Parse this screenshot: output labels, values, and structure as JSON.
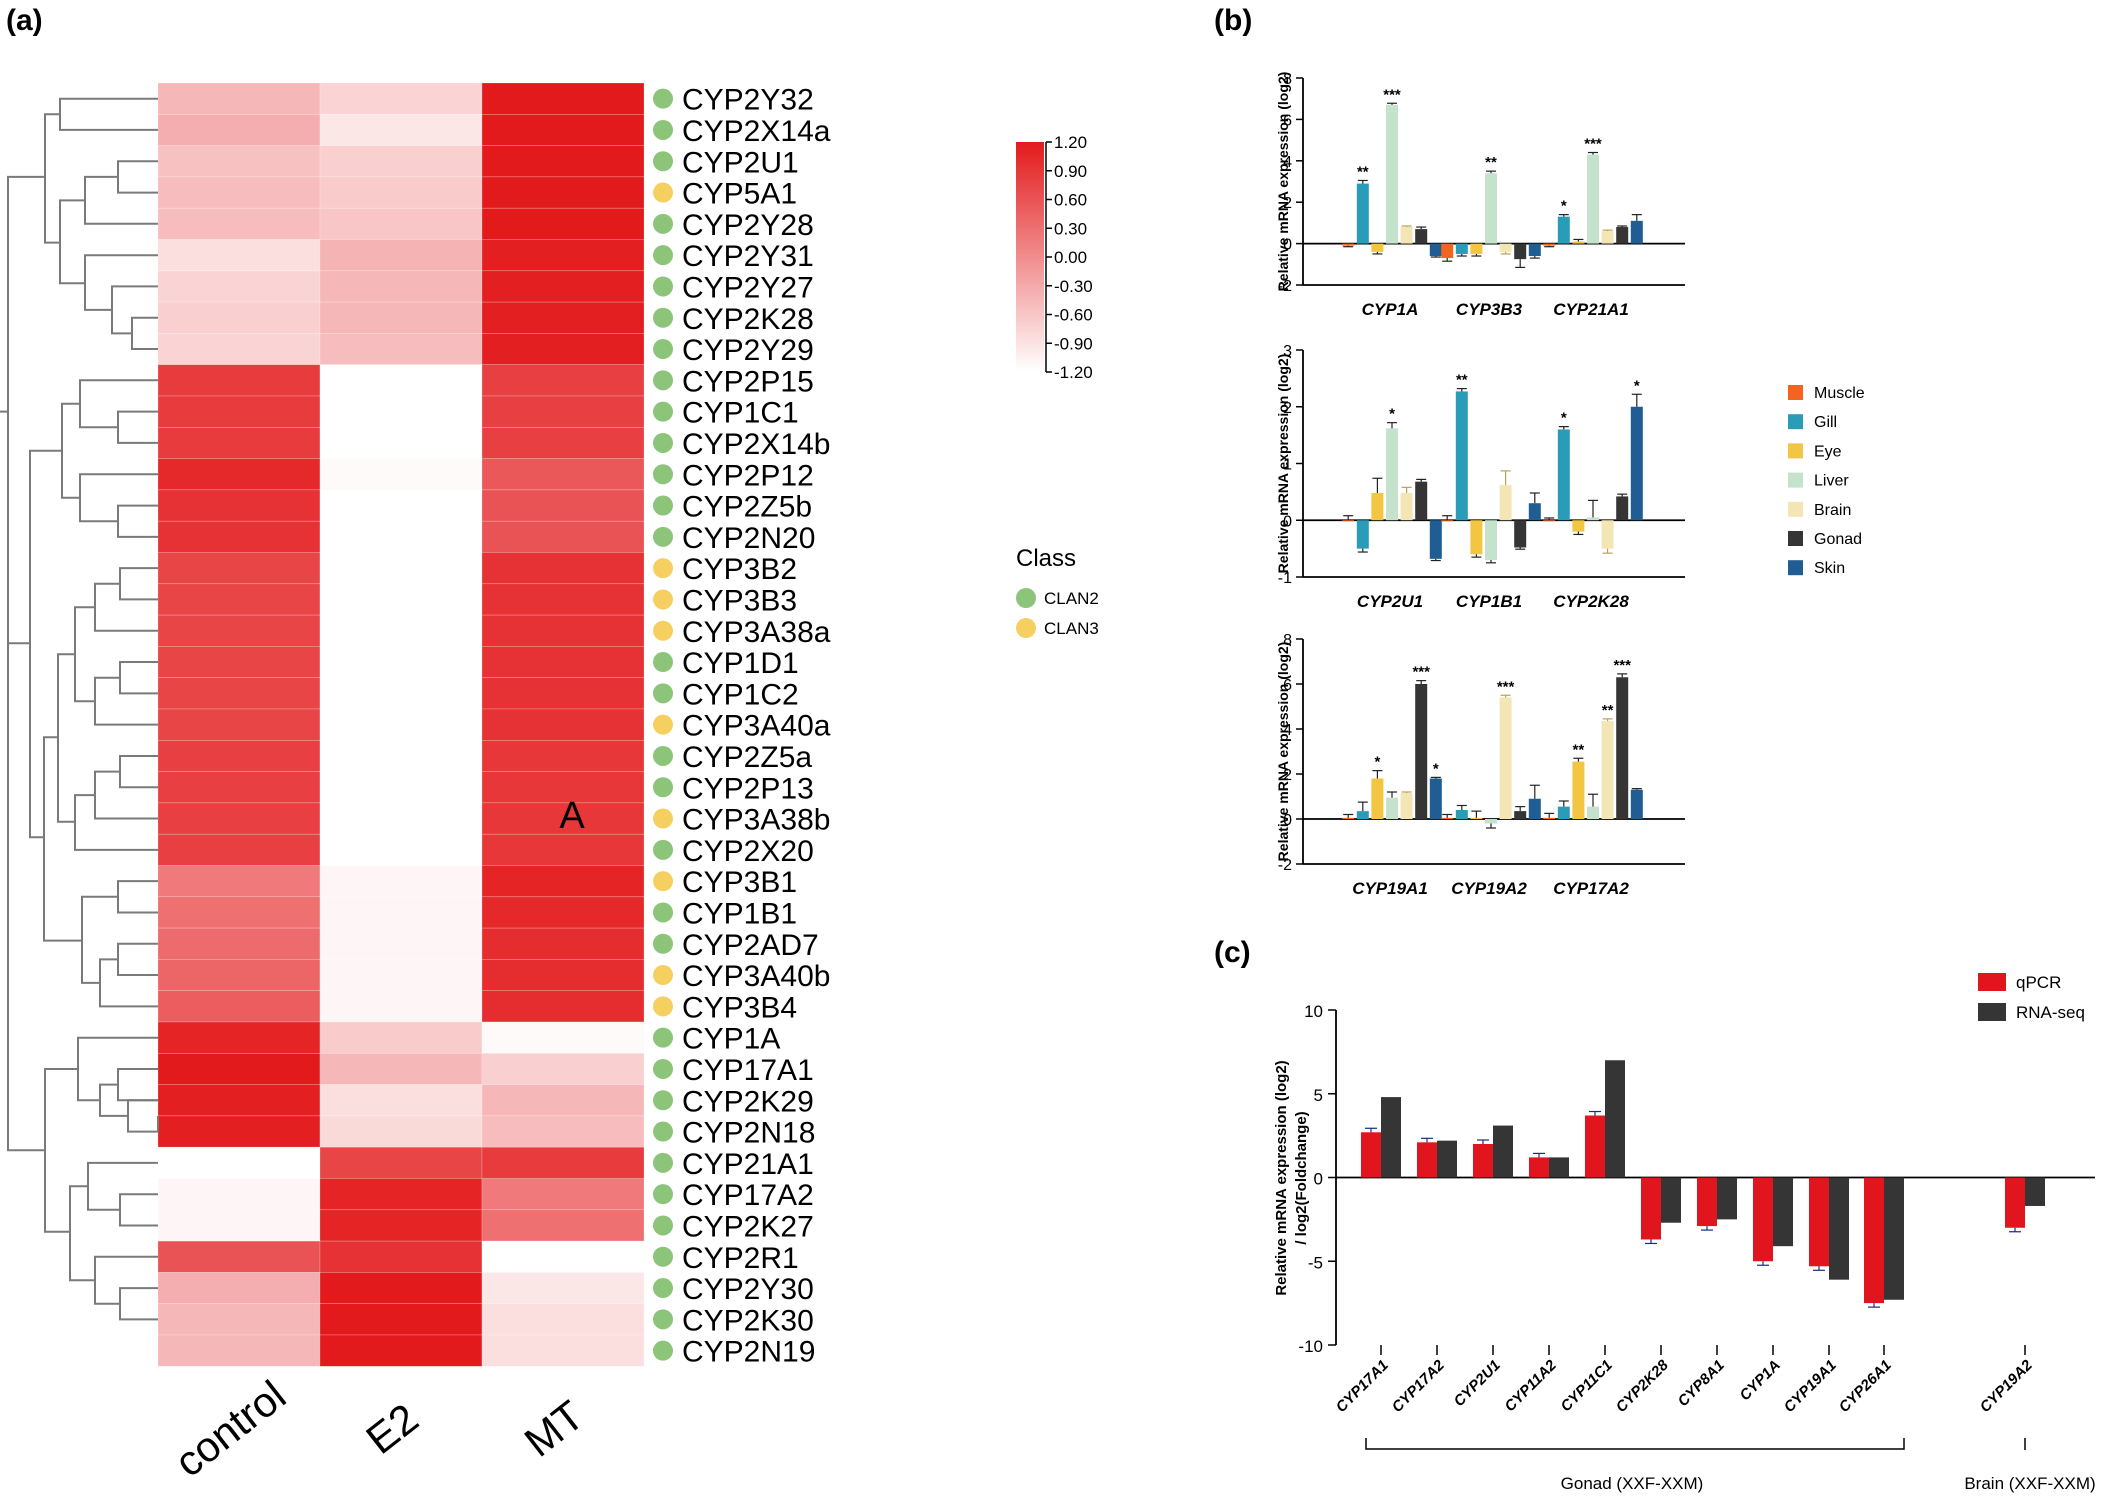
{
  "panels": {
    "a": {
      "label": "(a)"
    },
    "b": {
      "label": "(b)"
    },
    "c": {
      "label": "(c)"
    }
  },
  "chart_data": [
    {
      "type": "heatmap",
      "panel": "a",
      "columns": [
        "control",
        "E2",
        "MT"
      ],
      "rows": [
        {
          "gene": "CYP2Y32",
          "class": "CLAN2",
          "values": [
            -0.45,
            -0.75,
            1.2
          ]
        },
        {
          "gene": "CYP2X14a",
          "class": "CLAN2",
          "values": [
            -0.35,
            -0.95,
            1.2
          ]
        },
        {
          "gene": "CYP2U1",
          "class": "CLAN2",
          "values": [
            -0.55,
            -0.7,
            1.2
          ]
        },
        {
          "gene": "CYP5A1",
          "class": "CLAN3",
          "values": [
            -0.5,
            -0.65,
            1.2
          ]
        },
        {
          "gene": "CYP2Y28",
          "class": "CLAN2",
          "values": [
            -0.5,
            -0.6,
            1.2
          ]
        },
        {
          "gene": "CYP2Y31",
          "class": "CLAN2",
          "values": [
            -0.85,
            -0.4,
            1.15
          ]
        },
        {
          "gene": "CYP2Y27",
          "class": "CLAN2",
          "values": [
            -0.75,
            -0.45,
            1.15
          ]
        },
        {
          "gene": "CYP2K28",
          "class": "CLAN2",
          "values": [
            -0.7,
            -0.45,
            1.15
          ]
        },
        {
          "gene": "CYP2Y29",
          "class": "CLAN2",
          "values": [
            -0.75,
            -0.5,
            1.15
          ]
        },
        {
          "gene": "CYP2P15",
          "class": "CLAN2",
          "values": [
            0.85,
            -1.2,
            0.8
          ]
        },
        {
          "gene": "CYP1C1",
          "class": "CLAN2",
          "values": [
            0.85,
            -1.2,
            0.8
          ]
        },
        {
          "gene": "CYP2X14b",
          "class": "CLAN2",
          "values": [
            0.85,
            -1.2,
            0.8
          ]
        },
        {
          "gene": "CYP2P12",
          "class": "CLAN2",
          "values": [
            1.05,
            -1.15,
            0.55
          ]
        },
        {
          "gene": "CYP2Z5b",
          "class": "CLAN2",
          "values": [
            0.95,
            -1.2,
            0.6
          ]
        },
        {
          "gene": "CYP2N20",
          "class": "CLAN2",
          "values": [
            0.95,
            -1.2,
            0.6
          ]
        },
        {
          "gene": "CYP3B2",
          "class": "CLAN3",
          "values": [
            0.75,
            -1.2,
            0.95
          ]
        },
        {
          "gene": "CYP3B3",
          "class": "CLAN3",
          "values": [
            0.75,
            -1.2,
            0.95
          ]
        },
        {
          "gene": "CYP3A38a",
          "class": "CLAN3",
          "values": [
            0.75,
            -1.2,
            0.95
          ]
        },
        {
          "gene": "CYP1D1",
          "class": "CLAN2",
          "values": [
            0.75,
            -1.2,
            0.95
          ]
        },
        {
          "gene": "CYP1C2",
          "class": "CLAN2",
          "values": [
            0.75,
            -1.2,
            0.95
          ]
        },
        {
          "gene": "CYP3A40a",
          "class": "CLAN3",
          "values": [
            0.75,
            -1.2,
            0.95
          ]
        },
        {
          "gene": "CYP2Z5a",
          "class": "CLAN2",
          "values": [
            0.8,
            -1.2,
            0.9
          ]
        },
        {
          "gene": "CYP2P13",
          "class": "CLAN2",
          "values": [
            0.8,
            -1.2,
            0.9
          ]
        },
        {
          "gene": "CYP3A38b",
          "class": "CLAN3",
          "values": [
            0.8,
            -1.2,
            0.9
          ]
        },
        {
          "gene": "CYP2X20",
          "class": "CLAN2",
          "values": [
            0.8,
            -1.2,
            0.9
          ]
        },
        {
          "gene": "CYP3B1",
          "class": "CLAN3",
          "values": [
            0.2,
            -1.1,
            1.1
          ]
        },
        {
          "gene": "CYP1B1",
          "class": "CLAN2",
          "values": [
            0.3,
            -1.1,
            1.05
          ]
        },
        {
          "gene": "CYP2AD7",
          "class": "CLAN2",
          "values": [
            0.35,
            -1.1,
            1.0
          ]
        },
        {
          "gene": "CYP3A40b",
          "class": "CLAN3",
          "values": [
            0.4,
            -1.1,
            1.0
          ]
        },
        {
          "gene": "CYP3B4",
          "class": "CLAN3",
          "values": [
            0.5,
            -1.1,
            1.0
          ]
        },
        {
          "gene": "CYP1A",
          "class": "CLAN2",
          "values": [
            1.1,
            -0.65,
            -1.15
          ]
        },
        {
          "gene": "CYP17A1",
          "class": "CLAN2",
          "values": [
            1.2,
            -0.45,
            -0.7
          ]
        },
        {
          "gene": "CYP2K29",
          "class": "CLAN2",
          "values": [
            1.15,
            -0.85,
            -0.45
          ]
        },
        {
          "gene": "CYP2N18",
          "class": "CLAN2",
          "values": [
            1.15,
            -0.8,
            -0.5
          ]
        },
        {
          "gene": "CYP21A1",
          "class": "CLAN2",
          "values": [
            -1.2,
            0.75,
            0.85
          ]
        },
        {
          "gene": "CYP17A2",
          "class": "CLAN2",
          "values": [
            -1.1,
            1.1,
            0.2
          ]
        },
        {
          "gene": "CYP2K27",
          "class": "CLAN2",
          "values": [
            -1.1,
            1.1,
            0.3
          ]
        },
        {
          "gene": "CYP2R1",
          "class": "CLAN2",
          "values": [
            0.6,
            0.95,
            -1.2
          ]
        },
        {
          "gene": "CYP2Y30",
          "class": "CLAN2",
          "values": [
            -0.35,
            1.2,
            -0.95
          ]
        },
        {
          "gene": "CYP2K30",
          "class": "CLAN2",
          "values": [
            -0.45,
            1.2,
            -0.85
          ]
        },
        {
          "gene": "CYP2N19",
          "class": "CLAN2",
          "values": [
            -0.45,
            1.2,
            -0.85
          ]
        }
      ],
      "colorbar": {
        "min": -1.2,
        "max": 1.2,
        "ticks": [
          "1.20",
          "0.90",
          "0.60",
          "0.30",
          "0.00",
          "-0.30",
          "-0.60",
          "-0.90",
          "-1.20"
        ],
        "high_color": "#e31a1c",
        "low_color": "#ffffff"
      },
      "legend": {
        "title": "Class",
        "items": [
          {
            "name": "CLAN2",
            "color": "#8cc47a"
          },
          {
            "name": "CLAN3",
            "color": "#f5d060"
          }
        ]
      },
      "annotation": "A"
    },
    {
      "type": "bar",
      "panel": "b",
      "ylabel": "Relative mRNA expression (log2)",
      "groups": [
        {
          "ylim": [
            -2,
            8
          ],
          "yticks": [
            -2,
            0,
            2,
            4,
            6,
            8
          ],
          "genes": [
            {
              "name": "CYP1A",
              "values": [
                -0.1,
                2.9,
                -0.4,
                6.7,
                0.8,
                0.7,
                -0.6
              ],
              "errors": [
                0.05,
                0.15,
                0.1,
                0.08,
                0.05,
                0.1,
                0.05
              ],
              "stars": [
                "",
                "**",
                "",
                "***",
                "",
                "",
                ""
              ]
            },
            {
              "name": "CYP3B3",
              "values": [
                -0.7,
                -0.5,
                -0.5,
                3.4,
                -0.4,
                -0.75,
                -0.6
              ],
              "errors": [
                0.15,
                0.1,
                0.1,
                0.1,
                0.1,
                0.4,
                0.1
              ],
              "stars": [
                "",
                "",
                "",
                "**",
                "",
                "",
                ""
              ]
            },
            {
              "name": "CYP21A1",
              "values": [
                -0.1,
                1.3,
                0.1,
                4.3,
                0.6,
                0.8,
                1.1
              ],
              "errors": [
                0.05,
                0.1,
                0.1,
                0.1,
                0.05,
                0.05,
                0.3
              ],
              "stars": [
                "",
                "*",
                "",
                "***",
                "",
                "",
                ""
              ]
            }
          ]
        },
        {
          "ylim": [
            -1,
            3
          ],
          "yticks": [
            -1,
            0,
            1,
            2,
            3
          ],
          "genes": [
            {
              "name": "CYP2U1",
              "values": [
                0.0,
                -0.5,
                0.48,
                1.62,
                0.48,
                0.68,
                -0.68
              ],
              "errors": [
                0.08,
                0.06,
                0.26,
                0.1,
                0.1,
                0.04,
                0.03
              ],
              "stars": [
                "",
                "",
                "",
                "*",
                "",
                "",
                ""
              ]
            },
            {
              "name": "CYP1B1",
              "values": [
                0.0,
                2.27,
                -0.6,
                -0.7,
                0.62,
                -0.48,
                0.3
              ],
              "errors": [
                0.08,
                0.05,
                0.05,
                0.05,
                0.25,
                0.03,
                0.18
              ],
              "stars": [
                "",
                "**",
                "",
                "",
                "",
                "",
                ""
              ]
            },
            {
              "name": "CYP2K28",
              "values": [
                0.0,
                1.6,
                -0.2,
                0.05,
                -0.5,
                0.42,
                2.0
              ],
              "errors": [
                0.04,
                0.05,
                0.05,
                0.3,
                0.08,
                0.04,
                0.22
              ],
              "stars": [
                "",
                "*",
                "",
                "",
                "",
                "",
                "*"
              ]
            }
          ]
        },
        {
          "ylim": [
            -2,
            8
          ],
          "yticks": [
            -2,
            0,
            2,
            4,
            6,
            8
          ],
          "genes": [
            {
              "name": "CYP19A1",
              "values": [
                0.05,
                0.35,
                1.8,
                0.95,
                1.15,
                6.0,
                1.8
              ],
              "errors": [
                0.15,
                0.4,
                0.35,
                0.25,
                0.05,
                0.15,
                0.05
              ],
              "stars": [
                "",
                "",
                "*",
                "",
                "",
                "***",
                "*"
              ]
            },
            {
              "name": "CYP19A2",
              "values": [
                0.05,
                0.4,
                0.05,
                -0.2,
                5.4,
                0.35,
                0.9
              ],
              "errors": [
                0.15,
                0.2,
                0.3,
                0.2,
                0.1,
                0.2,
                0.6
              ],
              "stars": [
                "",
                "",
                "",
                "",
                "***",
                "",
                ""
              ]
            },
            {
              "name": "CYP17A2",
              "values": [
                0.05,
                0.55,
                2.55,
                0.55,
                4.35,
                6.3,
                1.3
              ],
              "errors": [
                0.2,
                0.25,
                0.15,
                0.55,
                0.1,
                0.15,
                0.05
              ],
              "stars": [
                "",
                "",
                "**",
                "",
                "**",
                "***",
                ""
              ]
            }
          ]
        }
      ],
      "legend": [
        {
          "name": "Muscle",
          "color": "#f2641f"
        },
        {
          "name": "Gill",
          "color": "#2b9cb8"
        },
        {
          "name": "Eye",
          "color": "#f2c543"
        },
        {
          "name": "Liver",
          "color": "#c5e3cc"
        },
        {
          "name": "Brain",
          "color": "#f3e6b4"
        },
        {
          "name": "Gonad",
          "color": "#353535"
        },
        {
          "name": "Skin",
          "color": "#1f5d92"
        }
      ]
    },
    {
      "type": "bar",
      "panel": "c",
      "ylabel_line1": "Relative mRNA expression (log2)",
      "ylabel_line2": "/ log2(Foldchange)",
      "ylim": [
        -10,
        10
      ],
      "yticks": [
        -10,
        -5,
        0,
        5,
        10
      ],
      "categories": [
        "CYP17A1",
        "CYP17A2",
        "CYP2U1",
        "CYP11A2",
        "CYP11C1",
        "CYP2K28",
        "CYP8A1",
        "CYP1A",
        "CYP19A1",
        "CYP26A1",
        "CYP19A2"
      ],
      "series": [
        {
          "name": "qPCR",
          "color": "#e0151e",
          "values": [
            2.7,
            2.1,
            2.0,
            1.2,
            3.7,
            -3.7,
            -2.9,
            -5.0,
            -5.3,
            -7.5,
            -3.0
          ]
        },
        {
          "name": "RNA-seq",
          "color": "#353535",
          "values": [
            4.8,
            2.2,
            3.1,
            1.2,
            7.0,
            -2.7,
            -2.5,
            -4.1,
            -6.1,
            -7.3,
            -1.7
          ]
        }
      ],
      "group_labels": [
        "Gonad (XXF-XXM)",
        "Brain (XXF-XXM)"
      ]
    }
  ]
}
